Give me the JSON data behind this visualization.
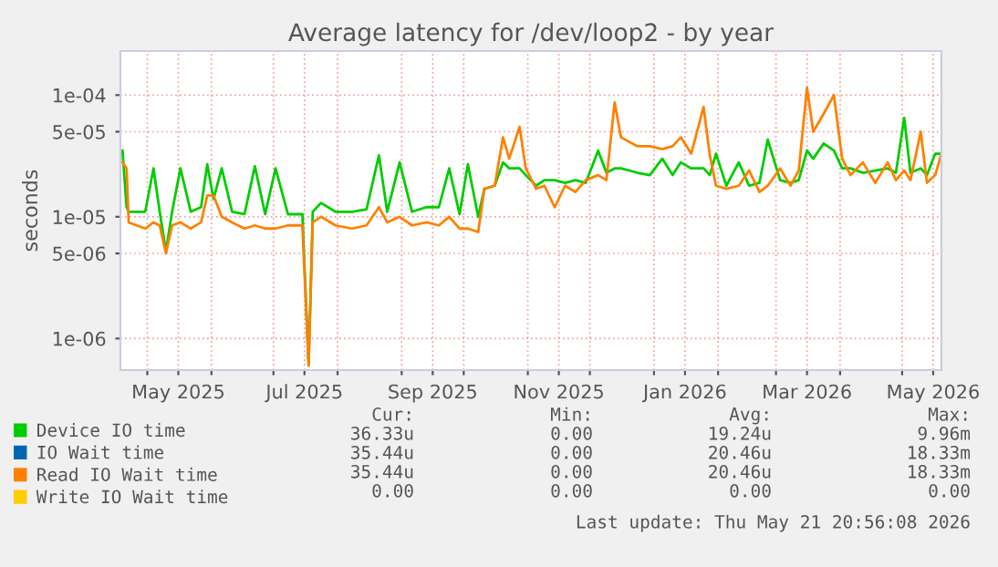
{
  "chart_data": {
    "type": "line",
    "title": "Average latency for /dev/loop2 - by year",
    "ylabel": "seconds",
    "log": "y",
    "grid": true,
    "legend": "bottom",
    "marker": "none",
    "line_style": "solid",
    "xlim": [
      "2025-04-18",
      "2026-05-20"
    ],
    "xticks": [
      {
        "value": "2025-05-01",
        "label": null
      },
      {
        "value": "2025-05-16",
        "label": "May 2025"
      },
      {
        "value": "2025-06-01",
        "label": null
      },
      {
        "value": "2025-07-01",
        "label": null
      },
      {
        "value": "2025-07-16",
        "label": "Jul 2025"
      },
      {
        "value": "2025-08-01",
        "label": null
      },
      {
        "value": "2025-09-01",
        "label": null
      },
      {
        "value": "2025-09-16",
        "label": "Sep 2025"
      },
      {
        "value": "2025-10-01",
        "label": null
      },
      {
        "value": "2025-11-01",
        "label": null
      },
      {
        "value": "2025-11-16",
        "label": "Nov 2025"
      },
      {
        "value": "2025-12-01",
        "label": null
      },
      {
        "value": "2026-01-01",
        "label": null
      },
      {
        "value": "2026-01-16",
        "label": "Jan 2026"
      },
      {
        "value": "2026-02-01",
        "label": null
      },
      {
        "value": "2026-03-01",
        "label": null
      },
      {
        "value": "2026-03-16",
        "label": "Mar 2026"
      },
      {
        "value": "2026-04-01",
        "label": null
      },
      {
        "value": "2026-05-01",
        "label": null
      },
      {
        "value": "2026-05-16",
        "label": "May 2026"
      }
    ],
    "ylim": [
      5.5e-07,
      0.00023
    ],
    "yticks": [
      {
        "value": 1e-06,
        "label": "1e-06"
      },
      {
        "value": 5e-06,
        "label": "5e-06"
      },
      {
        "value": 1e-05,
        "label": "1e-05"
      },
      {
        "value": 5e-05,
        "label": "5e-05"
      },
      {
        "value": 0.0001,
        "label": "1e-04"
      }
    ],
    "x": [
      "2025-04-19",
      "2025-04-21",
      "2025-04-22",
      "2025-04-30",
      "2025-05-04",
      "2025-05-07",
      "2025-05-10",
      "2025-05-13",
      "2025-05-17",
      "2025-05-22",
      "2025-05-27",
      "2025-05-30",
      "2025-06-02",
      "2025-06-06",
      "2025-06-11",
      "2025-06-17",
      "2025-06-22",
      "2025-06-27",
      "2025-07-02",
      "2025-07-08",
      "2025-07-15",
      "2025-07-18",
      "2025-07-20",
      "2025-07-24",
      "2025-07-31",
      "2025-08-08",
      "2025-08-15",
      "2025-08-21",
      "2025-08-25",
      "2025-08-31",
      "2025-09-06",
      "2025-09-13",
      "2025-09-19",
      "2025-09-24",
      "2025-09-29",
      "2025-10-03",
      "2025-10-08",
      "2025-10-11",
      "2025-10-16",
      "2025-10-20",
      "2025-10-23",
      "2025-10-28",
      "2025-10-31",
      "2025-11-05",
      "2025-11-09",
      "2025-11-14",
      "2025-11-19",
      "2025-11-24",
      "2025-11-29",
      "2025-12-05",
      "2025-12-09",
      "2025-12-13",
      "2025-12-16",
      "2025-12-24",
      "2025-12-30",
      "2026-01-05",
      "2026-01-10",
      "2026-01-14",
      "2026-01-19",
      "2026-01-25",
      "2026-01-28",
      "2026-01-31",
      "2026-02-05",
      "2026-02-11",
      "2026-02-16",
      "2026-02-21",
      "2026-02-25",
      "2026-03-03",
      "2026-03-08",
      "2026-03-12",
      "2026-03-16",
      "2026-03-19",
      "2026-03-24",
      "2026-03-29",
      "2026-04-02",
      "2026-04-06",
      "2026-04-12",
      "2026-04-18",
      "2026-04-24",
      "2026-04-28",
      "2026-05-02",
      "2026-05-05",
      "2026-05-10",
      "2026-05-13",
      "2026-05-17",
      "2026-05-20"
    ],
    "series": [
      {
        "name": "Device IO time",
        "color": "#00cc00",
        "values": [
          3.5e-05,
          1.2e-05,
          1.1e-05,
          1.1e-05,
          2.5e-05,
          1.1e-05,
          5.2e-06,
          1.1e-05,
          2.5e-05,
          1.1e-05,
          1.2e-05,
          2.7e-05,
          1.4e-05,
          2.5e-05,
          1.1e-05,
          1.05e-05,
          2.6e-05,
          1.05e-05,
          2.5e-05,
          1.05e-05,
          1.05e-05,
          6e-07,
          1.1e-05,
          1.3e-05,
          1.1e-05,
          1.1e-05,
          1.15e-05,
          3.2e-05,
          1.1e-05,
          2.8e-05,
          1.1e-05,
          1.2e-05,
          1.2e-05,
          2.5e-05,
          1.05e-05,
          2.7e-05,
          1e-05,
          1.7e-05,
          1.8e-05,
          2.8e-05,
          2.5e-05,
          2.5e-05,
          2.2e-05,
          1.8e-05,
          2e-05,
          2e-05,
          1.9e-05,
          2e-05,
          1.9e-05,
          3.5e-05,
          2.3e-05,
          2.5e-05,
          2.5e-05,
          2.3e-05,
          2.2e-05,
          3e-05,
          2.2e-05,
          2.8e-05,
          2.5e-05,
          2.5e-05,
          2.2e-05,
          3.3e-05,
          1.8e-05,
          2.8e-05,
          1.8e-05,
          1.9e-05,
          4.3e-05,
          2e-05,
          1.9e-05,
          2e-05,
          3.5e-05,
          3e-05,
          4e-05,
          3.5e-05,
          2.5e-05,
          2.5e-05,
          2.3e-05,
          2.4e-05,
          2.5e-05,
          2.3e-05,
          6.5e-05,
          2.3e-05,
          2.5e-05,
          2.2e-05,
          3.3e-05,
          3.3e-05
        ]
      },
      {
        "name": "IO Wait time",
        "color": "#0066b3",
        "values": [
          null,
          null,
          null,
          null,
          null,
          null,
          null,
          null,
          null,
          null,
          null,
          null,
          null,
          null,
          null,
          null,
          null,
          null,
          null,
          null,
          null,
          null,
          null,
          null,
          null,
          null,
          null,
          null,
          null,
          null,
          null,
          null,
          null,
          null,
          null,
          null,
          null,
          null,
          null,
          null,
          null,
          null,
          null,
          null,
          null,
          null,
          null,
          null,
          null,
          null,
          null,
          null,
          null,
          null,
          null,
          null,
          null,
          null,
          null,
          null,
          null,
          null,
          null,
          null,
          null,
          null,
          null,
          null,
          null,
          null,
          null,
          null,
          null,
          null,
          null,
          null,
          null,
          null,
          null,
          null,
          null,
          null,
          null,
          null,
          null,
          null
        ]
      },
      {
        "name": "Read IO Wait time",
        "color": "#ff8000",
        "values": [
          2.8e-05,
          2.5e-05,
          9e-06,
          8e-06,
          9e-06,
          8.5e-06,
          5e-06,
          8.5e-06,
          9e-06,
          8e-06,
          9e-06,
          1.5e-05,
          1.5e-05,
          1e-05,
          9e-06,
          8e-06,
          8.5e-06,
          8e-06,
          8e-06,
          8.5e-06,
          8.5e-06,
          6e-07,
          9e-06,
          1e-05,
          8.5e-06,
          8e-06,
          8.5e-06,
          1.2e-05,
          9e-06,
          1e-05,
          8.5e-06,
          9e-06,
          8.5e-06,
          1e-05,
          8e-06,
          8e-06,
          7.5e-06,
          1.7e-05,
          1.8e-05,
          4.5e-05,
          3e-05,
          5.5e-05,
          2.5e-05,
          1.7e-05,
          1.8e-05,
          1.2e-05,
          1.8e-05,
          1.6e-05,
          2e-05,
          2.2e-05,
          2e-05,
          8.7e-05,
          4.5e-05,
          3.8e-05,
          3.8e-05,
          3.6e-05,
          3.8e-05,
          4.5e-05,
          3.3e-05,
          8e-05,
          3.2e-05,
          1.8e-05,
          1.7e-05,
          1.8e-05,
          2.4e-05,
          1.6e-05,
          1.8e-05,
          2.5e-05,
          1.8e-05,
          2.4e-05,
          0.000115,
          5e-05,
          7e-05,
          0.0001,
          3e-05,
          2.2e-05,
          2.8e-05,
          1.9e-05,
          2.8e-05,
          2e-05,
          2.4e-05,
          2e-05,
          5e-05,
          1.9e-05,
          2.2e-05,
          3.3e-05
        ]
      },
      {
        "name": "Write IO Wait time",
        "color": "#ffcc00",
        "values": [
          null,
          null,
          null,
          null,
          null,
          null,
          null,
          null,
          null,
          null,
          null,
          null,
          null,
          null,
          null,
          null,
          null,
          null,
          null,
          null,
          null,
          null,
          null,
          null,
          null,
          null,
          null,
          null,
          null,
          null,
          null,
          null,
          null,
          null,
          null,
          null,
          null,
          null,
          null,
          null,
          null,
          null,
          null,
          null,
          null,
          null,
          null,
          null,
          null,
          null,
          null,
          null,
          null,
          null,
          null,
          null,
          null,
          null,
          null,
          null,
          null,
          null,
          null,
          null,
          null,
          null,
          null,
          null,
          null,
          null,
          null,
          null,
          null,
          null,
          null,
          null,
          null,
          null,
          null,
          null,
          null,
          null,
          null,
          null,
          null,
          null
        ]
      }
    ],
    "annotations": [
      "Cur:",
      "Min:",
      "Avg:",
      "Max:",
      "36.33u",
      "0.00",
      "19.24u",
      "9.96m",
      "35.44u",
      "0.00",
      "20.46u",
      "18.33m",
      "35.44u",
      "0.00",
      "20.46u",
      "18.33m",
      "0.00",
      "0.00",
      "0.00",
      "0.00",
      "Last update: Thu May 21 20:56:08 2026"
    ]
  }
}
